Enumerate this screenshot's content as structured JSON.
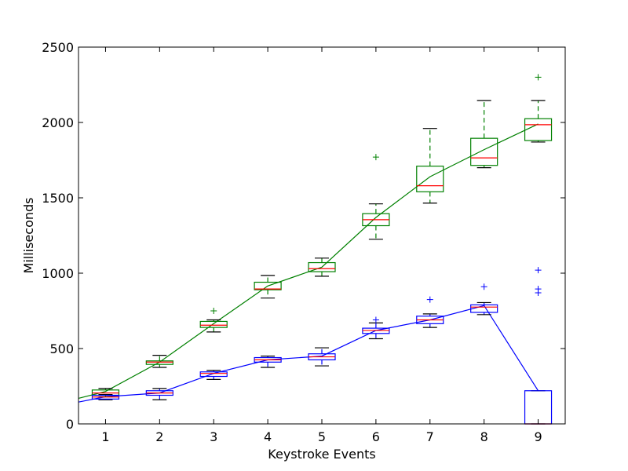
{
  "chart_data": {
    "type": "box",
    "title": "",
    "xlabel": "Keystroke Events",
    "ylabel": "Milliseconds",
    "xlim": [
      0.5,
      9.5
    ],
    "ylim": [
      0,
      2500
    ],
    "xticks": [
      1,
      2,
      3,
      4,
      5,
      6,
      7,
      8,
      9
    ],
    "yticks": [
      0,
      500,
      1000,
      1500,
      2000,
      2500
    ],
    "grid": false,
    "series": [
      {
        "name": "green",
        "color": "#008000",
        "median_color": "#ff0000",
        "line_x": [
          0.5,
          1,
          2,
          3,
          4,
          5,
          6,
          7,
          8,
          9
        ],
        "line_y": [
          170,
          215,
          410,
          665,
          915,
          1040,
          1370,
          1640,
          1820,
          1990
        ],
        "boxes": [
          {
            "x": 1,
            "whislo": 180,
            "q1": 190,
            "med": 205,
            "q3": 225,
            "whishi": 235,
            "fliers": []
          },
          {
            "x": 2,
            "whislo": 375,
            "q1": 395,
            "med": 410,
            "q3": 418,
            "whishi": 455,
            "fliers": []
          },
          {
            "x": 3,
            "whislo": 610,
            "q1": 640,
            "med": 655,
            "q3": 680,
            "whishi": 690,
            "fliers": [
              750
            ]
          },
          {
            "x": 4,
            "whislo": 835,
            "q1": 890,
            "med": 895,
            "q3": 940,
            "whishi": 985,
            "fliers": []
          },
          {
            "x": 5,
            "whislo": 980,
            "q1": 1010,
            "med": 1030,
            "q3": 1070,
            "whishi": 1100,
            "fliers": []
          },
          {
            "x": 6,
            "whislo": 1225,
            "q1": 1315,
            "med": 1355,
            "q3": 1395,
            "whishi": 1460,
            "fliers": [
              1770
            ]
          },
          {
            "x": 7,
            "whislo": 1465,
            "q1": 1540,
            "med": 1580,
            "q3": 1710,
            "whishi": 1960,
            "fliers": []
          },
          {
            "x": 8,
            "whislo": 1700,
            "q1": 1715,
            "med": 1765,
            "q3": 1895,
            "whishi": 2145,
            "fliers": []
          },
          {
            "x": 9,
            "whislo": 1870,
            "q1": 1880,
            "med": 1985,
            "q3": 2025,
            "whishi": 2145,
            "fliers": [
              2300
            ]
          }
        ]
      },
      {
        "name": "blue",
        "color": "#0000ff",
        "median_color": "#ff0000",
        "line_x": [
          0.5,
          1,
          2,
          3,
          4,
          5,
          6,
          7,
          8,
          9
        ],
        "line_y": [
          145,
          180,
          205,
          335,
          425,
          450,
          620,
          690,
          785,
          220
        ],
        "boxes": [
          {
            "x": 1,
            "whislo": 160,
            "q1": 165,
            "med": 178,
            "q3": 190,
            "whishi": 195,
            "fliers": []
          },
          {
            "x": 2,
            "whislo": 160,
            "q1": 190,
            "med": 205,
            "q3": 220,
            "whishi": 235,
            "fliers": []
          },
          {
            "x": 3,
            "whislo": 295,
            "q1": 315,
            "med": 335,
            "q3": 345,
            "whishi": 355,
            "fliers": []
          },
          {
            "x": 4,
            "whislo": 375,
            "q1": 410,
            "med": 425,
            "q3": 440,
            "whishi": 450,
            "fliers": []
          },
          {
            "x": 5,
            "whislo": 385,
            "q1": 425,
            "med": 445,
            "q3": 465,
            "whishi": 505,
            "fliers": []
          },
          {
            "x": 6,
            "whislo": 565,
            "q1": 600,
            "med": 620,
            "q3": 635,
            "whishi": 670,
            "fliers": [
              690
            ]
          },
          {
            "x": 7,
            "whislo": 640,
            "q1": 665,
            "med": 690,
            "q3": 715,
            "whishi": 730,
            "fliers": [
              825
            ]
          },
          {
            "x": 8,
            "whislo": 725,
            "q1": 740,
            "med": 775,
            "q3": 790,
            "whishi": 805,
            "fliers": [
              910
            ]
          },
          {
            "x": 9,
            "whislo": 0,
            "q1": 0,
            "med": 0,
            "q3": 220,
            "whishi": 220,
            "fliers": [
              870,
              895,
              1020
            ]
          }
        ]
      }
    ]
  }
}
